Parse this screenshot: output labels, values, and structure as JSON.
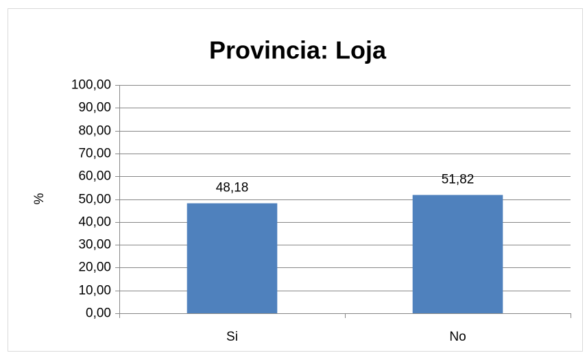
{
  "chart_data": {
    "type": "bar",
    "title": "Provincia: Loja",
    "y_label": "%",
    "categories": [
      "Si",
      "No"
    ],
    "values": [
      48.18,
      51.82
    ],
    "value_labels": [
      "48,18",
      "51,82"
    ],
    "color": "#4f81bd",
    "ylim": [
      0,
      100
    ],
    "yticks": [
      {
        "value": 0,
        "label": "0,00"
      },
      {
        "value": 10,
        "label": "10,00"
      },
      {
        "value": 20,
        "label": "20,00"
      },
      {
        "value": 30,
        "label": "30,00"
      },
      {
        "value": 40,
        "label": "40,00"
      },
      {
        "value": 50,
        "label": "50,00"
      },
      {
        "value": 60,
        "label": "60,00"
      },
      {
        "value": 70,
        "label": "70,00"
      },
      {
        "value": 80,
        "label": "80,00"
      },
      {
        "value": 90,
        "label": "90,00"
      },
      {
        "value": 100,
        "label": "100,00"
      }
    ],
    "grid": true
  }
}
